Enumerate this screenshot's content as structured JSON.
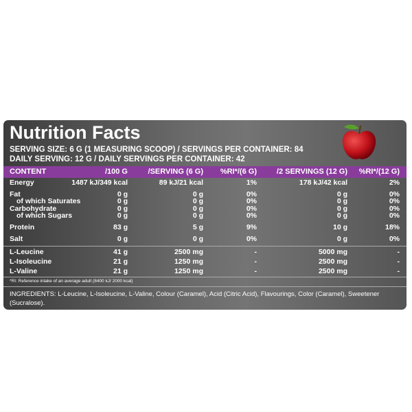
{
  "title": "Nutrition Facts",
  "serving": [
    "SERVING SIZE: 6 G (1 MEASURING SCOOP) / SERVINGS PER CONTAINER: 84",
    "DAILY SERVING: 12 G / DAILY SERVINGS PER CONTAINER: 42"
  ],
  "table": {
    "header": [
      "CONTENT",
      "/100 G",
      "/SERVING (6 G)",
      "%RI*/(6 G)",
      "/2 SERVINGS (12 G)",
      "%RI*/(12 G)"
    ],
    "rows": [
      [
        "Energy",
        "1487 kJ/349 kcal",
        "89 kJ/21 kcal",
        "1%",
        "178 kJ/42 kcal",
        "2%"
      ],
      [
        "Fat",
        "0 g",
        "0 g",
        "0%",
        "0 g",
        "0%"
      ],
      [
        "of which Saturates",
        "0 g",
        "0 g",
        "0%",
        "0 g",
        "0%"
      ],
      [
        "Carbohydrate",
        "0 g",
        "0 g",
        "0%",
        "0 g",
        "0%"
      ],
      [
        "of which Sugars",
        "0 g",
        "0 g",
        "0%",
        "0 g",
        "0%"
      ],
      [
        "Protein",
        "83 g",
        "5 g",
        "9%",
        "10 g",
        "18%"
      ],
      [
        "Salt",
        "0 g",
        "0 g",
        "0%",
        "0 g",
        "0%"
      ],
      [
        "L-Leucine",
        "41 g",
        "2500 mg",
        "-",
        "5000 mg",
        "-"
      ],
      [
        "L-Isoleucine",
        "21 g",
        "1250 mg",
        "-",
        "2500 mg",
        "-"
      ],
      [
        "L-Valine",
        "21 g",
        "1250 mg",
        "-",
        "2500 mg",
        "-"
      ]
    ]
  },
  "footnote": "*RI: Reference intake of an average adult (8400 kJ/ 2000 kcal)",
  "ingredients": "INGREDIENTS: L-Leucine, L-Isoleucine, L-Valine, Colour (Caramel), Acid (Citric Acid), Flavourings, Color (Caramel), Sweetener (Sucralose)."
}
